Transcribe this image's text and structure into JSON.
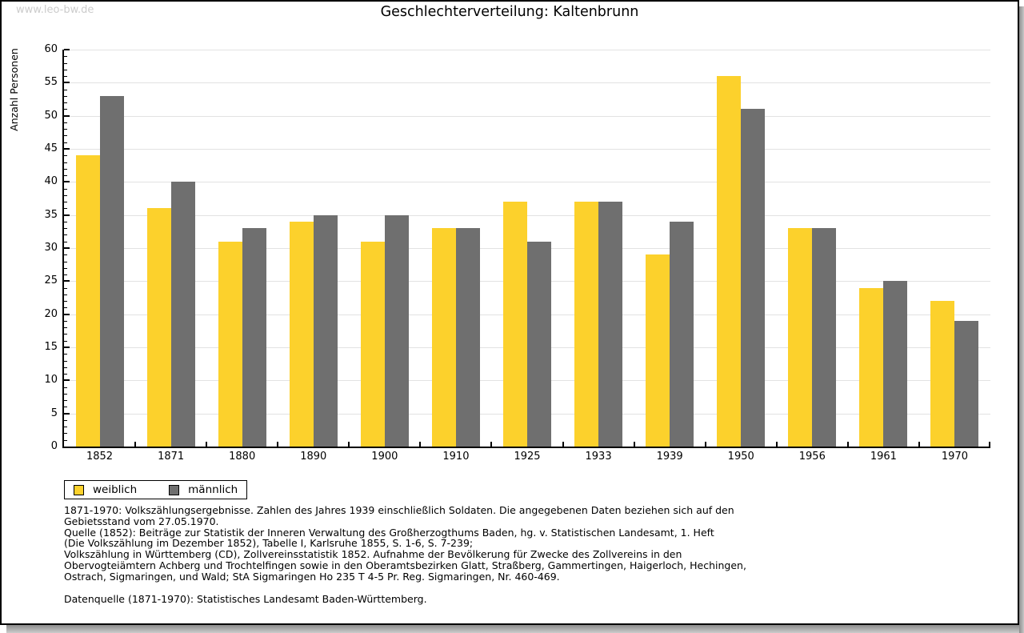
{
  "page": {
    "watermark": "www.leo-bw.de",
    "title": "Geschlechterverteilung: Kaltenbrunn"
  },
  "chart_data": {
    "type": "bar",
    "title": "Geschlechterverteilung: Kaltenbrunn",
    "xlabel": "",
    "ylabel": "Anzahl Personen",
    "ylim": [
      0,
      60
    ],
    "ytick_step": 5,
    "minor_tick_step": 1,
    "grid": true,
    "legend_position": "bottom-left",
    "categories": [
      "1852",
      "1871",
      "1880",
      "1890",
      "1900",
      "1910",
      "1925",
      "1933",
      "1939",
      "1950",
      "1956",
      "1961",
      "1970"
    ],
    "series": [
      {
        "name": "weiblich",
        "color": "#fcd12c",
        "values": [
          44,
          36,
          31,
          34,
          31,
          33,
          37,
          37,
          29,
          56,
          33,
          24,
          22
        ]
      },
      {
        "name": "männlich",
        "color": "#6f6f6f",
        "values": [
          53,
          40,
          33,
          35,
          35,
          33,
          31,
          37,
          34,
          51,
          33,
          25,
          19
        ]
      }
    ]
  },
  "footnotes": {
    "lines": [
      "1871-1970: Volkszählungsergebnisse. Zahlen des Jahres 1939 einschließlich Soldaten. Die angegebenen Daten beziehen sich auf den",
      "Gebietsstand vom 27.05.1970.",
      "Quelle (1852): Beiträge zur Statistik der Inneren Verwaltung des Großherzogthums Baden, hg. v. Statistischen Landesamt, 1. Heft",
      "(Die Volkszählung im Dezember 1852), Tabelle I, Karlsruhe 1855, S. 1-6, S. 7-239;",
      "Volkszählung in Württemberg (CD), Zollvereinsstatistik 1852. Aufnahme der Bevölkerung für Zwecke des Zollvereins in den",
      "Obervogteiämtern Achberg und Trochtelfingen sowie in den Oberamtsbezirken Glatt, Straßberg, Gammertingen, Haigerloch, Hechingen,",
      "Ostrach, Sigmaringen, und Wald; StA Sigmaringen Ho 235 T 4-5 Pr. Reg. Sigmaringen, Nr. 460-469."
    ],
    "datasource": "Datenquelle (1871-1970): Statistisches Landesamt Baden-Württemberg."
  }
}
